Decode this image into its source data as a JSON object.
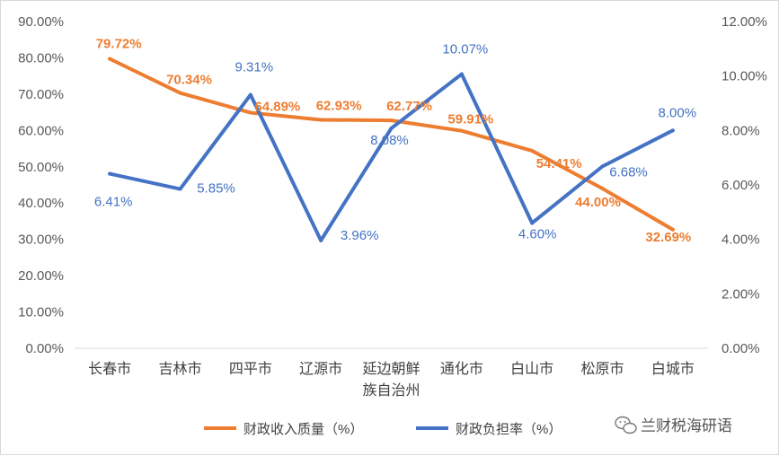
{
  "chart_data": {
    "type": "line",
    "categories": [
      [
        "长春市"
      ],
      [
        "吉林市"
      ],
      [
        "四平市"
      ],
      [
        "辽源市"
      ],
      [
        "延边朝鲜",
        "族自治州"
      ],
      [
        "通化市"
      ],
      [
        "白山市"
      ],
      [
        "松原市"
      ],
      [
        "白城市"
      ]
    ],
    "series": [
      {
        "name": "财政收入质量（%）",
        "axis": "left",
        "color": "#ed7d31",
        "values": [
          79.72,
          70.34,
          64.89,
          62.93,
          62.77,
          59.91,
          54.41,
          44.0,
          32.69
        ],
        "labels": [
          "79.72%",
          "70.34%",
          "64.89%",
          "62.93%",
          "62.77%",
          "59.91%",
          "54.41%",
          "44.00%",
          "32.69%"
        ]
      },
      {
        "name": "财政负担率（%）",
        "axis": "right",
        "color": "#4472c4",
        "values": [
          6.41,
          5.85,
          9.31,
          3.96,
          8.08,
          10.07,
          4.6,
          6.68,
          8.0
        ],
        "labels": [
          "6.41%",
          "5.85%",
          "9.31%",
          "3.96%",
          "8.08%",
          "10.07%",
          "4.60%",
          "6.68%",
          "8.00%"
        ]
      }
    ],
    "y_left": {
      "min": 0,
      "max": 90,
      "ticks": [
        "0.00%",
        "10.00%",
        "20.00%",
        "30.00%",
        "40.00%",
        "50.00%",
        "60.00%",
        "70.00%",
        "80.00%",
        "90.00%"
      ]
    },
    "y_right": {
      "min": 0,
      "max": 12,
      "ticks": [
        "0.00%",
        "2.00%",
        "4.00%",
        "6.00%",
        "8.00%",
        "10.00%",
        "12.00%"
      ]
    },
    "grid": false,
    "legend_position": "bottom"
  },
  "watermark": {
    "text": "兰财税海研语",
    "icon": "wechat-icon"
  }
}
